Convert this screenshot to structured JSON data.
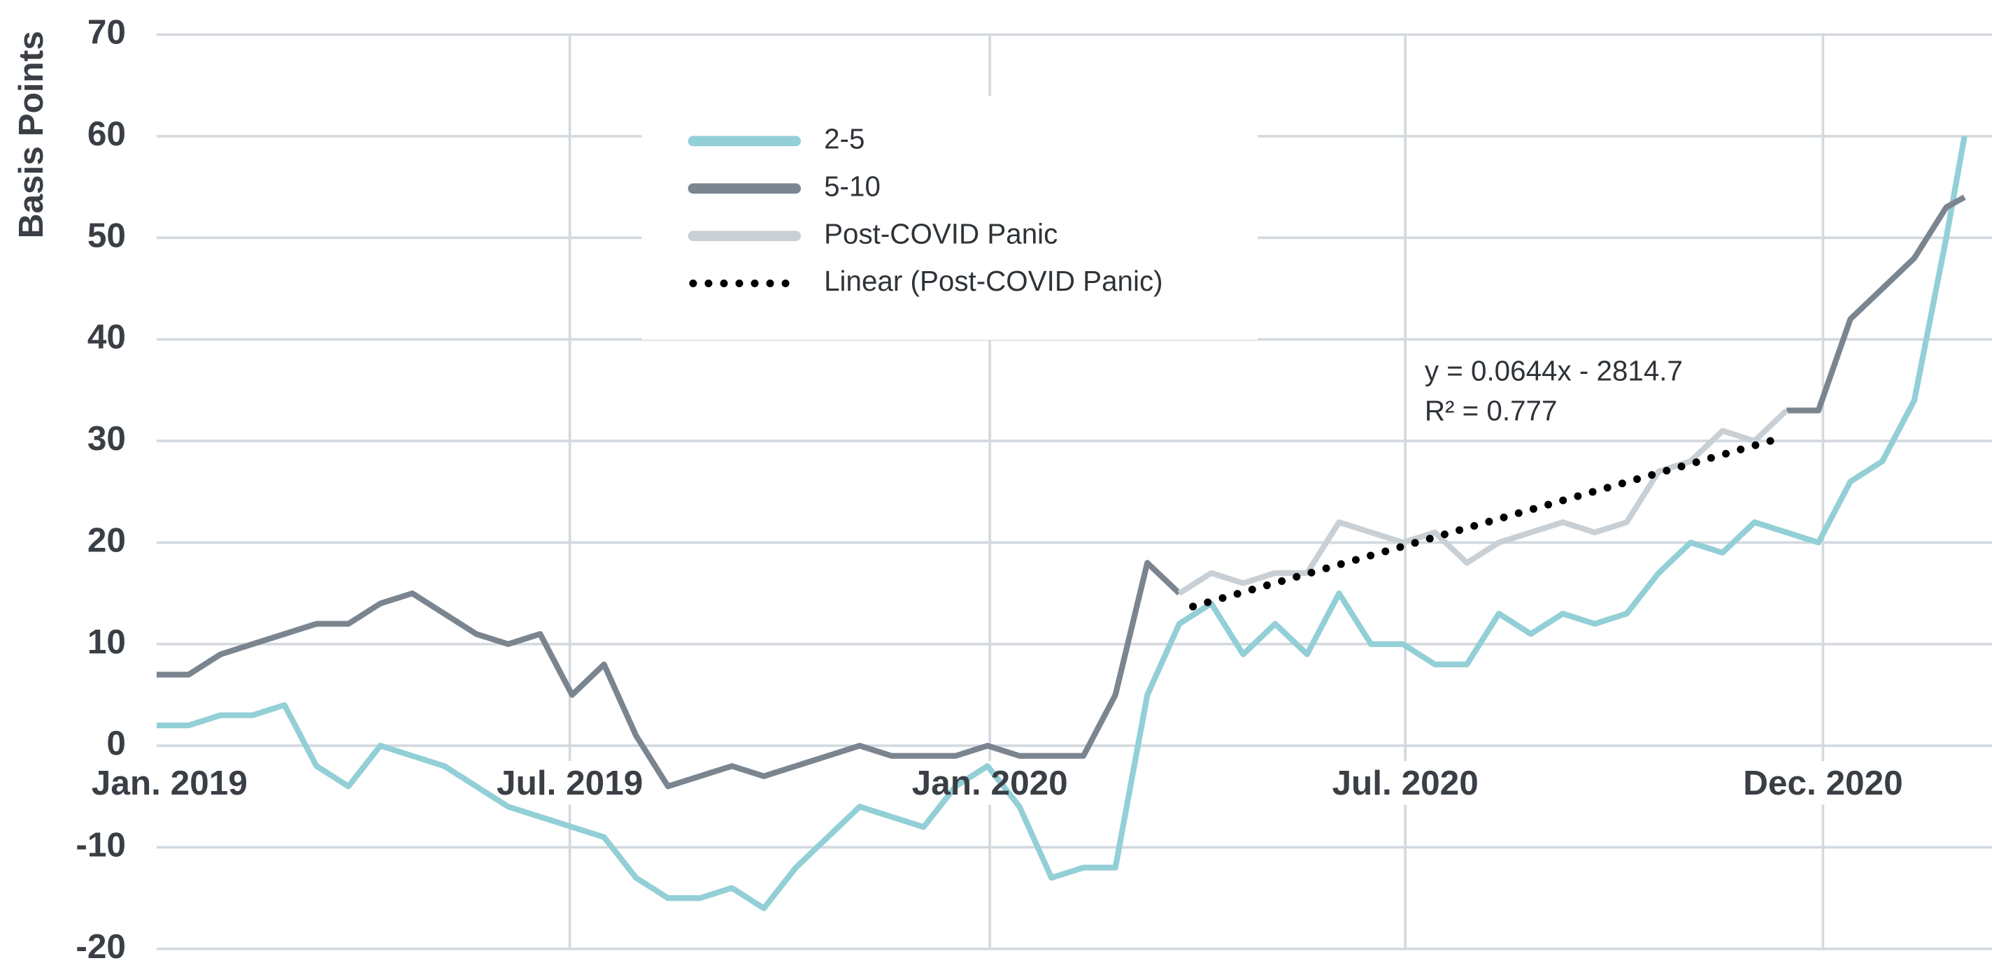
{
  "chart_data": {
    "type": "line",
    "y_label": "Basis Points",
    "x": [
      43466,
      43480,
      43494,
      43508,
      43522,
      43536,
      43550,
      43564,
      43578,
      43592,
      43606,
      43620,
      43634,
      43648,
      43662,
      43676,
      43690,
      43704,
      43718,
      43732,
      43746,
      43760,
      43774,
      43788,
      43802,
      43816,
      43830,
      43844,
      43858,
      43872,
      43886,
      43900,
      43914,
      43928,
      43942,
      43956,
      43970,
      43984,
      43998,
      44012,
      44026,
      44040,
      44054,
      44068,
      44082,
      44096,
      44110,
      44124,
      44138,
      44152,
      44166,
      44180,
      44194,
      44208,
      44222,
      44236,
      44250,
      44258
    ],
    "series": [
      {
        "name": "2-5",
        "color": "#93cfd6",
        "style": "solid",
        "values": [
          2,
          2,
          3,
          3,
          4,
          -2,
          -4,
          0,
          -1,
          -2,
          -4,
          -6,
          -7,
          -8,
          -9,
          -13,
          -15,
          -15,
          -14,
          -16,
          -12,
          -9,
          -6,
          -7,
          -8,
          -4,
          -2,
          -6,
          -13,
          -12,
          -12,
          5,
          12,
          14,
          9,
          12,
          9,
          15,
          10,
          10,
          8,
          8,
          13,
          11,
          13,
          12,
          13,
          17,
          20,
          19,
          22,
          21,
          20,
          26,
          28,
          34,
          50,
          60
        ]
      },
      {
        "name": "5-10",
        "color": "#7a8590",
        "style": "solid",
        "values": [
          7,
          7,
          9,
          10,
          11,
          12,
          12,
          14,
          15,
          13,
          11,
          10,
          11,
          5,
          8,
          1,
          -4,
          -3,
          -2,
          -3,
          -2,
          -1,
          0,
          -1,
          -1,
          -1,
          0,
          -1,
          -1,
          -1,
          5,
          18,
          15,
          null,
          null,
          null,
          null,
          null,
          null,
          null,
          null,
          null,
          null,
          null,
          null,
          null,
          null,
          null,
          null,
          null,
          null,
          33,
          33,
          42,
          45,
          48,
          53,
          54
        ]
      },
      {
        "name": "Post-COVID Panic",
        "color": "#c9d0d5",
        "style": "solid",
        "values": [
          null,
          null,
          null,
          null,
          null,
          null,
          null,
          null,
          null,
          null,
          null,
          null,
          null,
          null,
          null,
          null,
          null,
          null,
          null,
          null,
          null,
          null,
          null,
          null,
          null,
          null,
          null,
          null,
          null,
          null,
          null,
          null,
          15,
          17,
          16,
          17,
          17,
          22,
          21,
          20,
          21,
          18,
          20,
          21,
          22,
          21,
          22,
          27,
          28,
          31,
          30,
          33,
          null,
          null,
          null,
          null,
          null,
          null
        ]
      },
      {
        "name": "Linear (Post-COVID Panic)",
        "color": "#000000",
        "style": "dotted",
        "x": [
          43920,
          44176
        ],
        "values": [
          13.7,
          30.2
        ]
      }
    ],
    "annotations": [
      "y = 0.0644x - 2814.7",
      "R² = 0.777"
    ],
    "xlim": [
      43466,
      44270
    ],
    "xticks": [
      {
        "value": 43466,
        "label": "Jan. 2019"
      },
      {
        "value": 43647,
        "label": "Jul. 2019"
      },
      {
        "value": 43831,
        "label": "Jan. 2020"
      },
      {
        "value": 44013,
        "label": "Jul. 2020"
      },
      {
        "value": 44196,
        "label": "Dec. 2020"
      }
    ],
    "ylim": [
      -20,
      70
    ],
    "yticks": [
      -20,
      -10,
      0,
      10,
      20,
      30,
      40,
      50,
      60,
      70
    ],
    "grid": true,
    "legend": "upper center"
  }
}
